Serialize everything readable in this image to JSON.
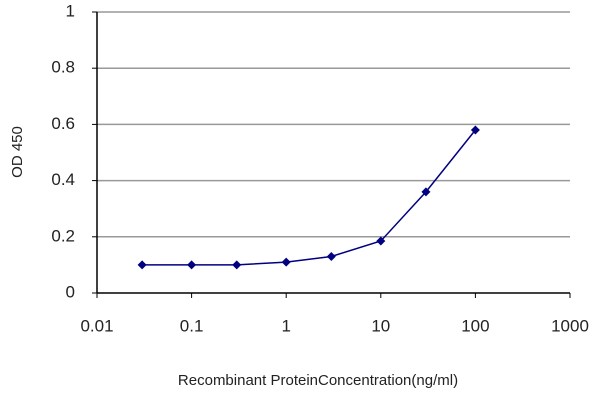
{
  "chart_data": {
    "type": "line",
    "x_label": "Recombinant ProteinConcentration(ng/ml)",
    "y_label": "OD 450",
    "xscale": "log",
    "x": [
      0.03,
      0.1,
      0.3,
      1,
      3,
      10,
      30,
      100
    ],
    "series": [
      {
        "color": "#000080",
        "values": [
          0.1,
          0.1,
          0.1,
          0.11,
          0.13,
          0.185,
          0.36,
          0.58
        ]
      }
    ],
    "xlim": [
      0.01,
      1000
    ],
    "xticks": [
      0.01,
      0.1,
      1,
      10,
      100,
      1000
    ],
    "ylim": [
      0,
      1
    ],
    "yticks": [
      0,
      0.2,
      0.4,
      0.6,
      0.8,
      1
    ],
    "grid": true
  }
}
